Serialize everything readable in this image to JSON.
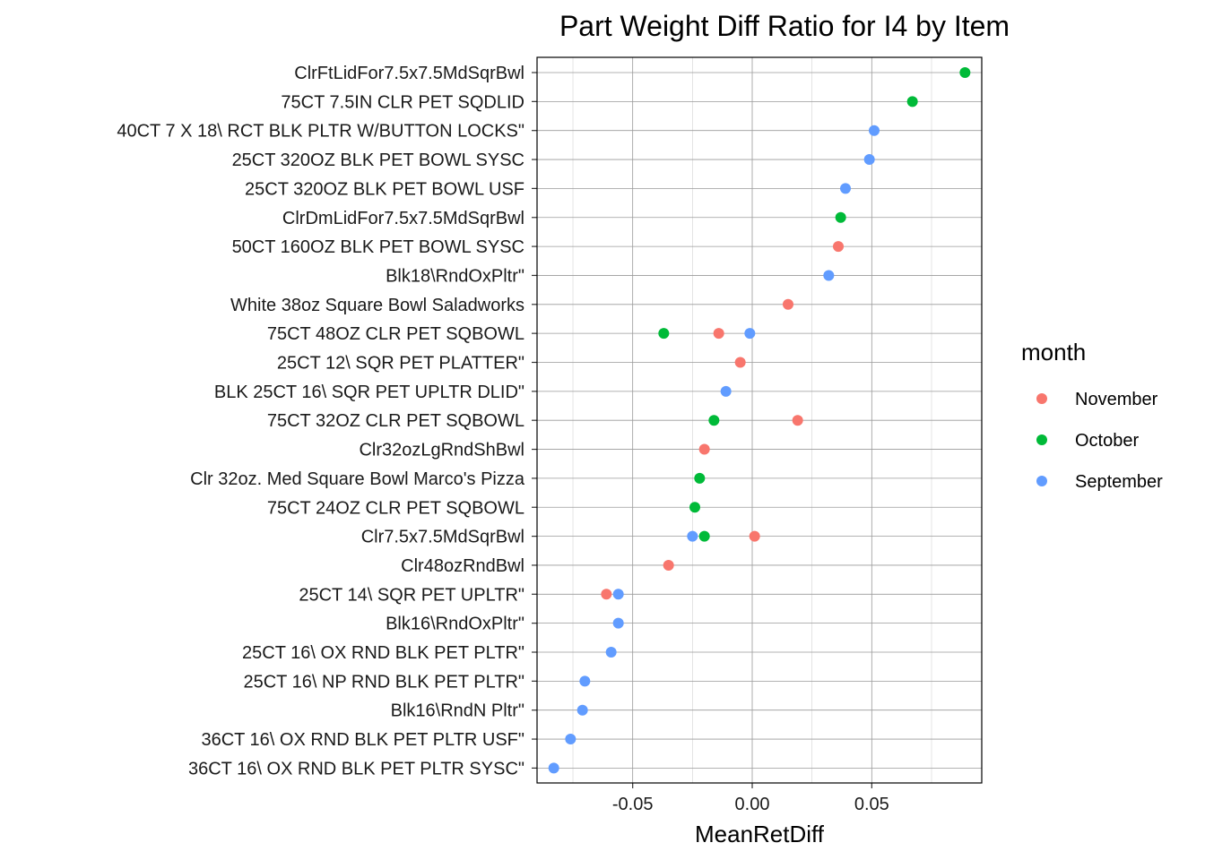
{
  "chart_data": {
    "type": "scatter",
    "title": "Part Weight Diff Ratio for I4 by Item",
    "xlabel": "MeanRetDiff",
    "ylabel": "",
    "xlim": [
      -0.09,
      0.096
    ],
    "x_ticks": [
      -0.05,
      0.0,
      0.05
    ],
    "x_tick_labels": [
      "-0.05",
      "0.00",
      "0.05"
    ],
    "grid": true,
    "legend": {
      "title": "month",
      "placement": "right",
      "entries": [
        {
          "name": "November",
          "color": "#F8766D"
        },
        {
          "name": "October",
          "color": "#00BA38"
        },
        {
          "name": "September",
          "color": "#619CFF"
        }
      ]
    },
    "categories": [
      "ClrFtLidFor7.5x7.5MdSqrBwl",
      "75CT 7.5IN CLR PET SQDLID",
      "40CT 7 X 18\\ RCT BLK PLTR W/BUTTON LOCKS\"",
      "25CT 320OZ BLK PET BOWL SYSC",
      "25CT 320OZ BLK PET BOWL USF",
      "ClrDmLidFor7.5x7.5MdSqrBwl",
      "50CT 160OZ BLK PET BOWL SYSC",
      "Blk18\\RndOxPltr\"",
      "White 38oz Square Bowl Saladworks",
      "75CT 48OZ CLR PET SQBOWL",
      "25CT 12\\ SQR PET PLATTER\"",
      "BLK 25CT 16\\ SQR PET UPLTR DLID\"",
      "75CT 32OZ CLR PET SQBOWL",
      "Clr32ozLgRndShBwl",
      "Clr 32oz. Med Square Bowl Marco's Pizza",
      "75CT 24OZ CLR PET SQBOWL",
      "Clr7.5x7.5MdSqrBwl",
      "Clr48ozRndBwl",
      "25CT 14\\ SQR PET UPLTR\"",
      "Blk16\\RndOxPltr\"",
      "25CT 16\\ OX RND BLK PET PLTR\"",
      "25CT 16\\ NP RND BLK PET PLTR\"",
      "Blk16\\RndN Pltr\"",
      "36CT 16\\ OX RND BLK PET PLTR USF\"",
      "36CT 16\\ OX RND BLK PET PLTR SYSC\""
    ],
    "points": [
      {
        "category": "ClrFtLidFor7.5x7.5MdSqrBwl",
        "month": "October",
        "x": 0.089
      },
      {
        "category": "75CT 7.5IN CLR PET SQDLID",
        "month": "October",
        "x": 0.067
      },
      {
        "category": "40CT 7 X 18\\ RCT BLK PLTR W/BUTTON LOCKS\"",
        "month": "September",
        "x": 0.051
      },
      {
        "category": "25CT 320OZ BLK PET BOWL SYSC",
        "month": "September",
        "x": 0.049
      },
      {
        "category": "25CT 320OZ BLK PET BOWL USF",
        "month": "September",
        "x": 0.039
      },
      {
        "category": "ClrDmLidFor7.5x7.5MdSqrBwl",
        "month": "October",
        "x": 0.037
      },
      {
        "category": "50CT 160OZ BLK PET BOWL SYSC",
        "month": "November",
        "x": 0.036
      },
      {
        "category": "Blk18\\RndOxPltr\"",
        "month": "September",
        "x": 0.032
      },
      {
        "category": "White 38oz Square Bowl Saladworks",
        "month": "November",
        "x": 0.015
      },
      {
        "category": "75CT 48OZ CLR PET SQBOWL",
        "month": "October",
        "x": -0.037
      },
      {
        "category": "75CT 48OZ CLR PET SQBOWL",
        "month": "November",
        "x": -0.014
      },
      {
        "category": "75CT 48OZ CLR PET SQBOWL",
        "month": "September",
        "x": -0.001
      },
      {
        "category": "25CT 12\\ SQR PET PLATTER\"",
        "month": "November",
        "x": -0.005
      },
      {
        "category": "BLK 25CT 16\\ SQR PET UPLTR DLID\"",
        "month": "September",
        "x": -0.011
      },
      {
        "category": "75CT 32OZ CLR PET SQBOWL",
        "month": "October",
        "x": -0.016
      },
      {
        "category": "75CT 32OZ CLR PET SQBOWL",
        "month": "November",
        "x": 0.019
      },
      {
        "category": "Clr32ozLgRndShBwl",
        "month": "November",
        "x": -0.02
      },
      {
        "category": "Clr 32oz. Med Square Bowl Marco's Pizza",
        "month": "October",
        "x": -0.022
      },
      {
        "category": "75CT 24OZ CLR PET SQBOWL",
        "month": "October",
        "x": -0.024
      },
      {
        "category": "Clr7.5x7.5MdSqrBwl",
        "month": "September",
        "x": -0.025
      },
      {
        "category": "Clr7.5x7.5MdSqrBwl",
        "month": "October",
        "x": -0.02
      },
      {
        "category": "Clr7.5x7.5MdSqrBwl",
        "month": "November",
        "x": 0.001
      },
      {
        "category": "Clr48ozRndBwl",
        "month": "November",
        "x": -0.035
      },
      {
        "category": "25CT 14\\ SQR PET UPLTR\"",
        "month": "November",
        "x": -0.061
      },
      {
        "category": "25CT 14\\ SQR PET UPLTR\"",
        "month": "September",
        "x": -0.056
      },
      {
        "category": "Blk16\\RndOxPltr\"",
        "month": "September",
        "x": -0.056
      },
      {
        "category": "25CT 16\\ OX RND BLK PET PLTR\"",
        "month": "September",
        "x": -0.059
      },
      {
        "category": "25CT 16\\ NP RND BLK PET PLTR\"",
        "month": "September",
        "x": -0.07
      },
      {
        "category": "Blk16\\RndN Pltr\"",
        "month": "September",
        "x": -0.071
      },
      {
        "category": "36CT 16\\ OX RND BLK PET PLTR USF\"",
        "month": "September",
        "x": -0.076
      },
      {
        "category": "36CT 16\\ OX RND BLK PET PLTR SYSC\"",
        "month": "September",
        "x": -0.083
      }
    ]
  }
}
